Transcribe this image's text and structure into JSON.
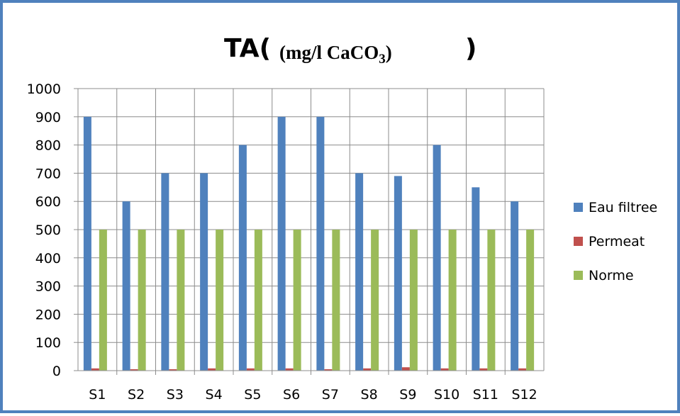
{
  "colors": {
    "frame": "#4f81bd",
    "grid": "#8c8c8c",
    "series": [
      "#4f81bd",
      "#c0504d",
      "#9bbb59"
    ]
  },
  "chart_data": {
    "type": "bar",
    "title": "TA( (mg/l CaCO₃) )",
    "title_parts": {
      "main": "TA(",
      "sub": "(mg/l CaCO",
      "sub_index": "3",
      "sub_end": ")",
      "bracket": ")"
    },
    "xlabel": "",
    "ylabel": "",
    "ylim": [
      0,
      1000
    ],
    "yticks": [
      0,
      100,
      200,
      300,
      400,
      500,
      600,
      700,
      800,
      900,
      1000
    ],
    "grid": true,
    "legend_position": "right",
    "categories": [
      "S1",
      "S2",
      "S3",
      "S4",
      "S5",
      "S6",
      "S7",
      "S8",
      "S9",
      "S10",
      "S11",
      "S12"
    ],
    "series": [
      {
        "name": "Eau filtree",
        "values": [
          900,
          600,
          700,
          700,
          800,
          900,
          900,
          700,
          690,
          800,
          650,
          600
        ]
      },
      {
        "name": "Permeat",
        "values": [
          8,
          5,
          5,
          8,
          8,
          8,
          5,
          8,
          12,
          8,
          8,
          8
        ]
      },
      {
        "name": "Norme",
        "values": [
          500,
          500,
          500,
          500,
          500,
          500,
          500,
          500,
          500,
          500,
          500,
          500
        ]
      }
    ]
  }
}
